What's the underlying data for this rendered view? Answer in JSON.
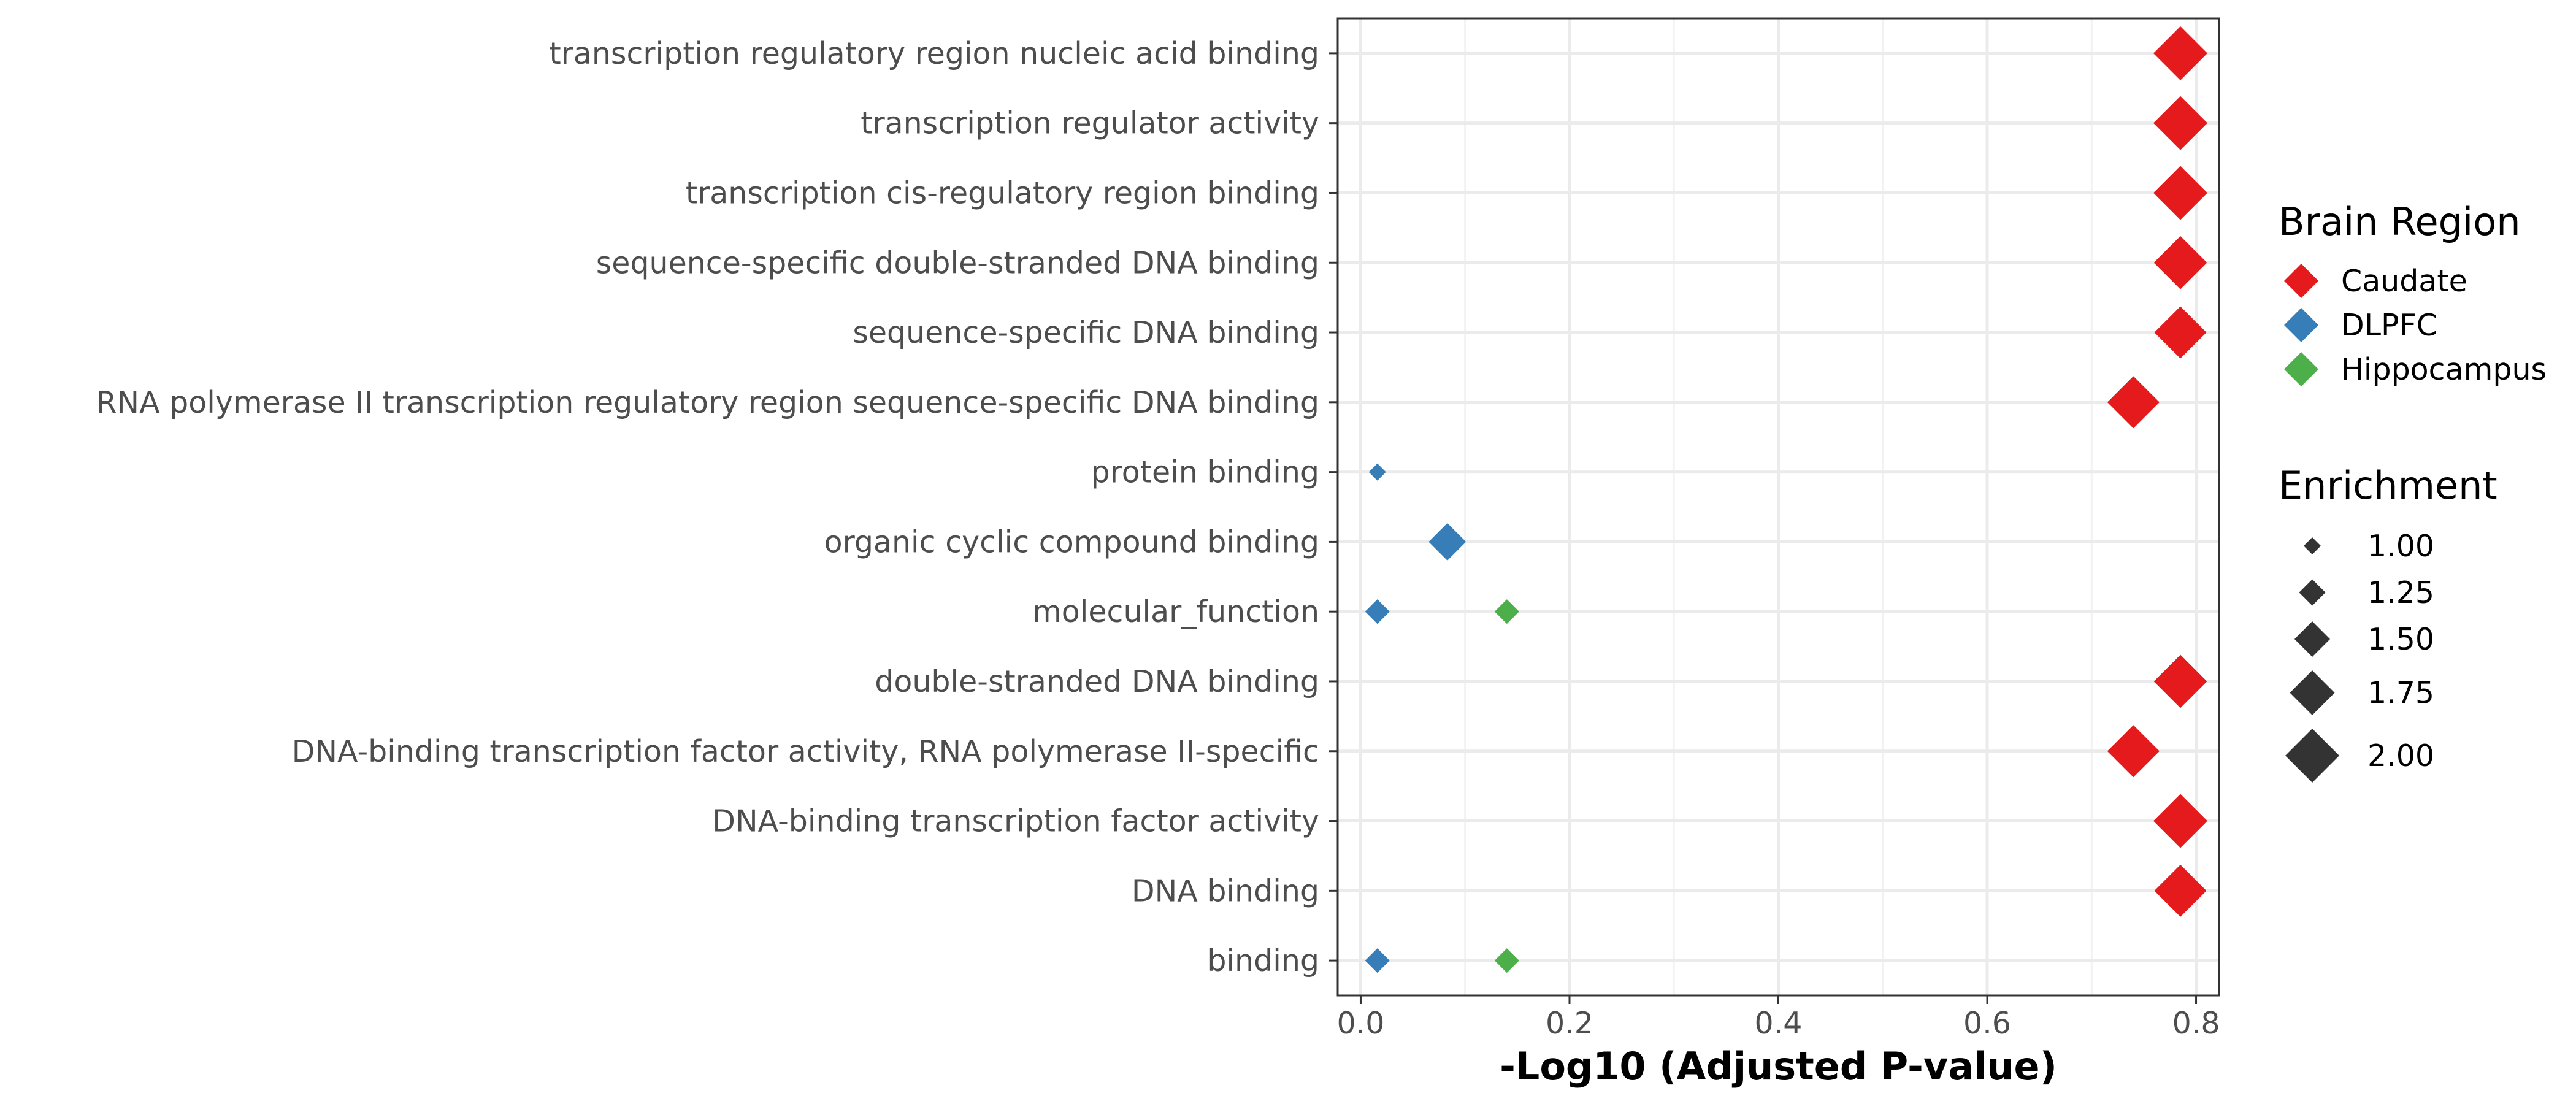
{
  "chart_data": {
    "type": "scatter",
    "xlabel": "-Log10 (Adjusted P-value)",
    "ylabel": "",
    "xlim": [
      -0.022,
      0.822
    ],
    "xticks": [
      0.0,
      0.2,
      0.4,
      0.6,
      0.8
    ],
    "xtick_labels": [
      "0.0",
      "0.2",
      "0.4",
      "0.6",
      "0.8"
    ],
    "grid": true,
    "categories": [
      "transcription regulatory region nucleic acid binding",
      "transcription regulator activity",
      "transcription cis-regulatory region binding",
      "sequence-specific double-stranded DNA binding",
      "sequence-specific DNA binding",
      "RNA polymerase II transcription regulatory region sequence-specific DNA binding",
      "protein binding",
      "organic cyclic compound binding",
      "molecular_function",
      "double-stranded DNA binding",
      "DNA-binding transcription factor activity, RNA polymerase II-specific",
      "DNA-binding transcription factor activity",
      "DNA binding",
      "binding"
    ],
    "series": [
      {
        "name": "Caudate",
        "color": "#E41A1C",
        "points": [
          {
            "category": "transcription regulatory region nucleic acid binding",
            "x": 0.785,
            "enrichment": 2.0
          },
          {
            "category": "transcription regulator activity",
            "x": 0.785,
            "enrichment": 2.0
          },
          {
            "category": "transcription cis-regulatory region binding",
            "x": 0.785,
            "enrichment": 2.0
          },
          {
            "category": "sequence-specific double-stranded DNA binding",
            "x": 0.785,
            "enrichment": 1.98
          },
          {
            "category": "sequence-specific DNA binding",
            "x": 0.785,
            "enrichment": 1.95
          },
          {
            "category": "RNA polymerase II transcription regulatory region sequence-specific DNA binding",
            "x": 0.74,
            "enrichment": 1.95
          },
          {
            "category": "double-stranded DNA binding",
            "x": 0.785,
            "enrichment": 1.98
          },
          {
            "category": "DNA-binding transcription factor activity, RNA polymerase II-specific",
            "x": 0.74,
            "enrichment": 1.95
          },
          {
            "category": "DNA-binding transcription factor activity",
            "x": 0.785,
            "enrichment": 2.0
          },
          {
            "category": "DNA binding",
            "x": 0.785,
            "enrichment": 1.95
          }
        ]
      },
      {
        "name": "DLPFC",
        "color": "#377EB8",
        "points": [
          {
            "category": "protein binding",
            "x": 0.016,
            "enrichment": 1.0
          },
          {
            "category": "organic cyclic compound binding",
            "x": 0.083,
            "enrichment": 1.55
          },
          {
            "category": "molecular_function",
            "x": 0.016,
            "enrichment": 1.2
          },
          {
            "category": "binding",
            "x": 0.016,
            "enrichment": 1.2
          }
        ]
      },
      {
        "name": "Hippocampus",
        "color": "#4DAF4A",
        "points": [
          {
            "category": "molecular_function",
            "x": 0.14,
            "enrichment": 1.2
          },
          {
            "category": "binding",
            "x": 0.14,
            "enrichment": 1.2
          }
        ]
      }
    ],
    "legends": {
      "color": {
        "title": "Brain Region",
        "entries": [
          {
            "label": "Caudate",
            "color": "#E41A1C"
          },
          {
            "label": "DLPFC",
            "color": "#377EB8"
          },
          {
            "label": "Hippocampus",
            "color": "#4DAF4A"
          }
        ]
      },
      "size": {
        "title": "Enrichment",
        "entries": [
          {
            "label": "1.00",
            "value": 1.0
          },
          {
            "label": "1.25",
            "value": 1.25
          },
          {
            "label": "1.50",
            "value": 1.5
          },
          {
            "label": "1.75",
            "value": 1.75
          },
          {
            "label": "2.00",
            "value": 2.0
          }
        ],
        "key_color": "#333333"
      },
      "placement": "right"
    }
  }
}
